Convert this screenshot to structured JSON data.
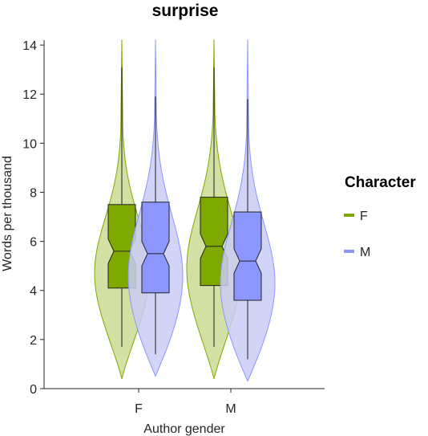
{
  "chart_data": {
    "type": "violin-box",
    "title": "surprise",
    "xlabel": "Author gender",
    "ylabel": "Words per thousand",
    "categories": [
      "F",
      "M"
    ],
    "ylim": [
      0,
      14.2
    ],
    "yticks": [
      0,
      2,
      4,
      6,
      8,
      10,
      12,
      14
    ],
    "legend": {
      "title": "Character",
      "position": "right",
      "entries": [
        {
          "label": "F",
          "color": "#7FA800"
        },
        {
          "label": "M",
          "color": "#8C96FF"
        }
      ]
    },
    "series": [
      {
        "name": "F",
        "color": "#7FA800",
        "violin_color": "#CBDB94",
        "groups": [
          {
            "category": "F",
            "whisker_low": 1.7,
            "q1": 4.1,
            "median": 5.6,
            "q3": 7.5,
            "whisker_high": 13.1,
            "min": 0.4,
            "max": 14.2,
            "notch_low": 5.1,
            "notch_high": 6.1,
            "mode": 4.7
          },
          {
            "category": "M",
            "whisker_low": 1.7,
            "q1": 4.2,
            "median": 5.8,
            "q3": 7.8,
            "whisker_high": 13.1,
            "min": 0.4,
            "max": 14.2,
            "notch_low": 5.3,
            "notch_high": 6.3,
            "mode": 4.9
          }
        ]
      },
      {
        "name": "M",
        "color": "#8C96FF",
        "violin_color": "#C9CCF5",
        "groups": [
          {
            "category": "F",
            "whisker_low": 1.4,
            "q1": 3.9,
            "median": 5.5,
            "q3": 7.6,
            "whisker_high": 11.9,
            "min": 0.5,
            "max": 14.2,
            "notch_low": 5.0,
            "notch_high": 6.0,
            "mode": 4.6
          },
          {
            "category": "M",
            "whisker_low": 1.2,
            "q1": 3.6,
            "median": 5.2,
            "q3": 7.2,
            "whisker_high": 11.8,
            "min": 0.3,
            "max": 14.2,
            "notch_low": 4.7,
            "notch_high": 5.7,
            "mode": 4.3
          }
        ]
      }
    ]
  }
}
